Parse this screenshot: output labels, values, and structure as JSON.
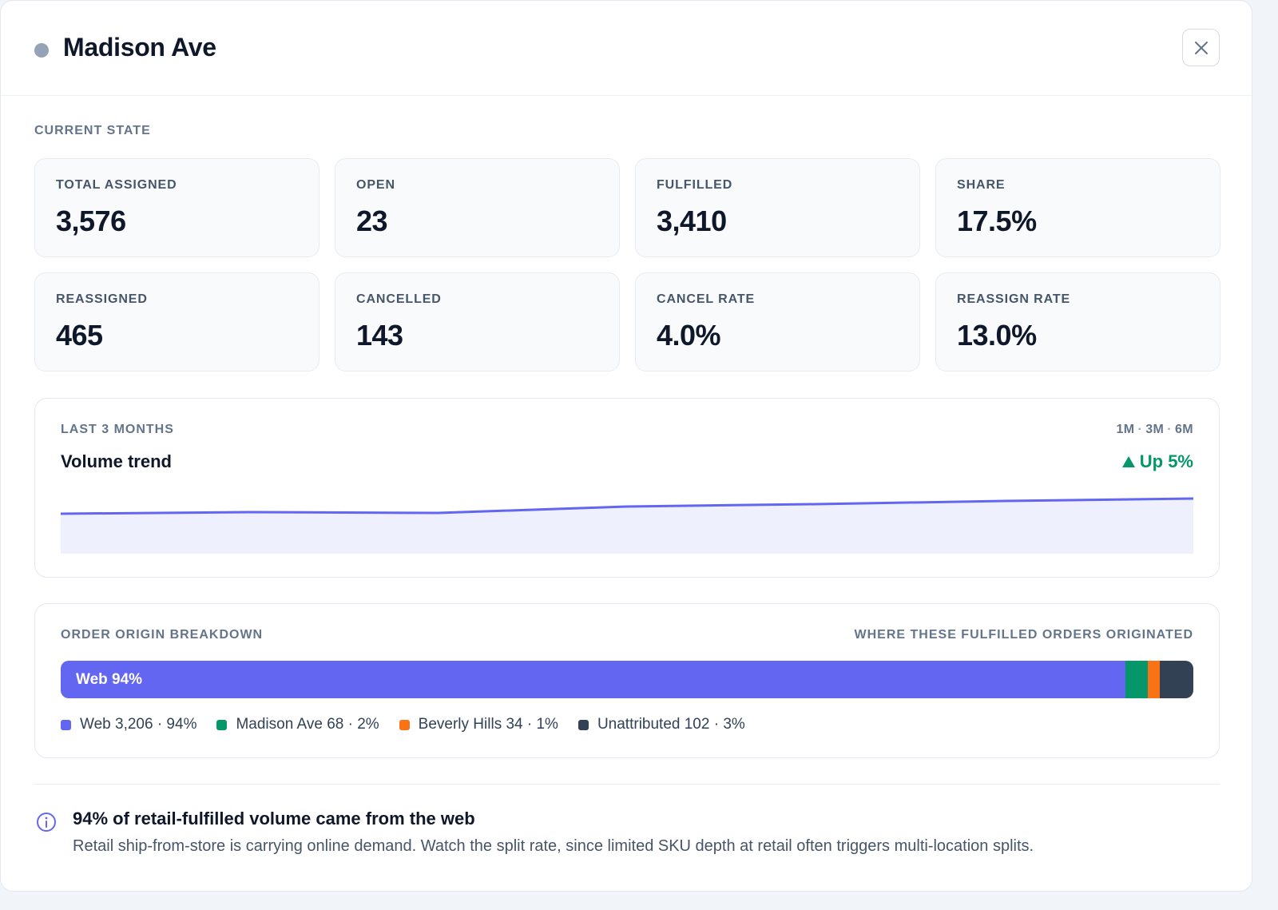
{
  "header": {
    "title": "Madison Ave",
    "status_color": "#94a3b8"
  },
  "current_state": {
    "label": "CURRENT STATE",
    "stats": [
      {
        "label": "TOTAL ASSIGNED",
        "value": "3,576"
      },
      {
        "label": "OPEN",
        "value": "23"
      },
      {
        "label": "FULFILLED",
        "value": "3,410"
      },
      {
        "label": "SHARE",
        "value": "17.5%"
      },
      {
        "label": "REASSIGNED",
        "value": "465"
      },
      {
        "label": "CANCELLED",
        "value": "143"
      },
      {
        "label": "CANCEL RATE",
        "value": "4.0%"
      },
      {
        "label": "REASSIGN RATE",
        "value": "13.0%"
      }
    ]
  },
  "trend": {
    "kicker": "LAST 3 MONTHS",
    "title": "Volume trend",
    "ranges": [
      "1M",
      "3M",
      "6M"
    ],
    "delta": "Up 5%",
    "delta_color": "#059669",
    "line_color": "#6366f1",
    "fill_color": "#eef0fd"
  },
  "chart_data": {
    "type": "area",
    "x": [
      1,
      2,
      3,
      4,
      5,
      6,
      7
    ],
    "values": [
      100,
      102,
      101,
      109,
      112,
      116,
      119
    ],
    "ylim": [
      50,
      130
    ],
    "grid": false
  },
  "origin": {
    "kicker": "ORDER ORIGIN BREAKDOWN",
    "subtitle": "WHERE THESE FULFILLED ORDERS ORIGINATED",
    "segments": [
      {
        "name": "Web",
        "count": 3206,
        "fraction": 0.94,
        "color": "#6366f1",
        "bar_label": "Web 94%",
        "legend": "Web 3,206 · 94%"
      },
      {
        "name": "Madison Ave",
        "count": 68,
        "fraction": 0.02,
        "color": "#059669",
        "bar_label": "",
        "legend": "Madison Ave 68 · 2%"
      },
      {
        "name": "Beverly Hills",
        "count": 34,
        "fraction": 0.01,
        "color": "#f97316",
        "bar_label": "",
        "legend": "Beverly Hills 34 · 1%"
      },
      {
        "name": "Unattributed",
        "count": 102,
        "fraction": 0.03,
        "color": "#334155",
        "bar_label": "",
        "legend": "Unattributed 102 · 3%"
      }
    ]
  },
  "insight": {
    "title": "94% of retail-fulfilled volume came from the web",
    "body": "Retail ship-from-store is carrying online demand. Watch the split rate, since limited SKU depth at retail often triggers multi-location splits.",
    "icon_color": "#6366f1"
  }
}
